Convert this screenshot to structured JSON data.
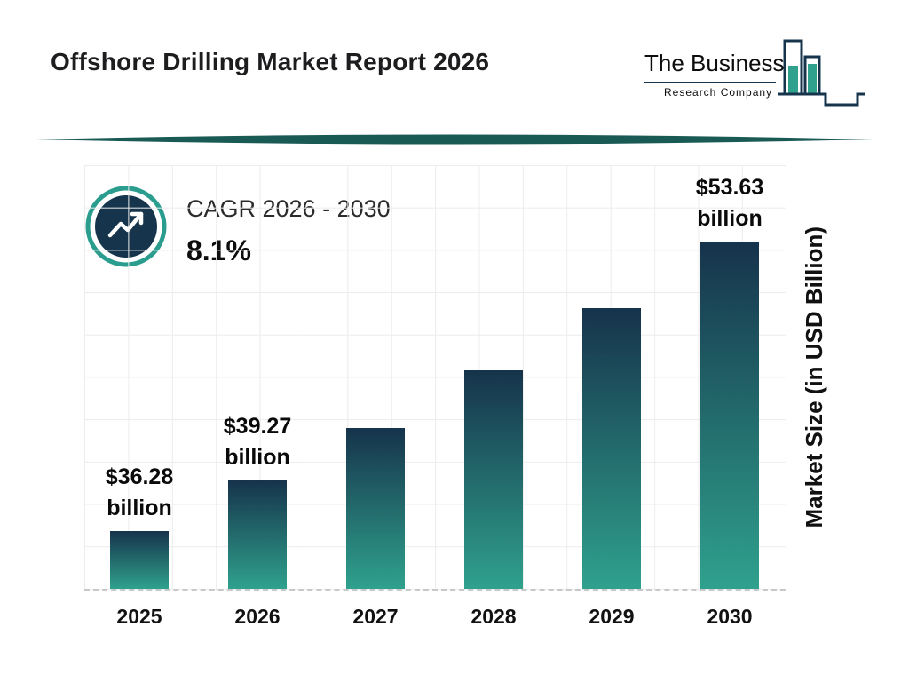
{
  "header": {
    "title": "Offshore Drilling Market Report 2026"
  },
  "logo": {
    "line1": "The Business",
    "line2": "Research Company"
  },
  "cagr": {
    "label": "CAGR 2026 - 2030",
    "value": "8.1%"
  },
  "chart_data": {
    "type": "bar",
    "title": "Offshore Drilling Market Report 2026",
    "categories": [
      "2025",
      "2026",
      "2027",
      "2028",
      "2029",
      "2030"
    ],
    "values": [
      36.28,
      39.27,
      42.45,
      45.89,
      49.61,
      53.63
    ],
    "value_labels": [
      [
        "$36.28",
        "billion"
      ],
      [
        "$39.27",
        "billion"
      ],
      null,
      null,
      null,
      [
        "$53.63",
        "billion"
      ]
    ],
    "xlabel": "",
    "ylabel": "Market Size (in USD Billion)",
    "ylim": [
      32.8,
      58.2
    ],
    "grid": true,
    "legend": "none",
    "bar_color_top": "#16334b",
    "bar_color_bottom": "#2fa18d"
  },
  "colors": {
    "navy": "#16354c",
    "teal": "#2fa18d",
    "ring_teal": "#2a9d8f",
    "divider": "#1a5a55",
    "grid": "#ececec"
  }
}
